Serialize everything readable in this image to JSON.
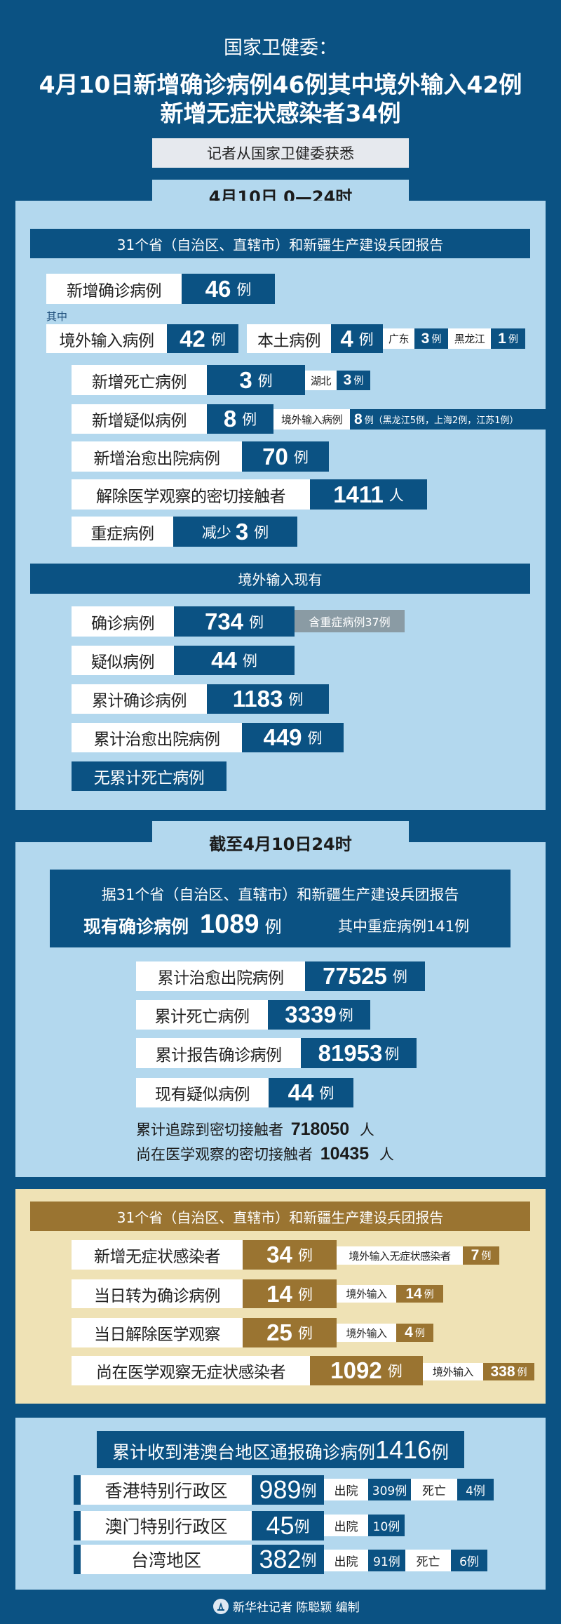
{
  "colors": {
    "background": "#0b5283",
    "panel": "#b3d8ee",
    "box_dark": "#0b5283",
    "asymptomatic_panel": "#efe2b5",
    "asymptomatic_box": "#9a7431",
    "note_gray": "#8a9ba4"
  },
  "header": {
    "agency": "国家卫健委：",
    "headline_line1": "4月10日新增确诊病例46例其中境外输入42例",
    "headline_line2": "新增无症状感染者34例",
    "source": "记者从国家卫健委获悉"
  },
  "daily": {
    "tab": "4月10日  0—24时",
    "report_header": "31个省（自治区、直辖市）和新疆生产建设兵团报告",
    "new_confirmed": {
      "label": "新增确诊病例",
      "value": "46",
      "unit": "例"
    },
    "of_which": "其中",
    "imported": {
      "label": "境外输入病例",
      "value": "42",
      "unit": "例"
    },
    "local": {
      "label": "本土病例",
      "value": "4",
      "unit": "例",
      "breakdown": [
        {
          "place": "广东",
          "value": "3",
          "unit": "例"
        },
        {
          "place": "黑龙江",
          "value": "1",
          "unit": "例"
        }
      ]
    },
    "deaths": {
      "label": "新增死亡病例",
      "value": "3",
      "unit": "例",
      "place": "湖北",
      "place_value": "3",
      "place_unit": "例"
    },
    "suspected": {
      "label": "新增疑似病例",
      "value": "8",
      "unit": "例",
      "detail_label": "境外输入病例",
      "detail_value": "8",
      "detail_text": "例（黑龙江5例，上海2例，江苏1例）"
    },
    "recovered": {
      "label": "新增治愈出院病例",
      "value": "70",
      "unit": "例"
    },
    "released_contacts": {
      "label": "解除医学观察的密切接触者",
      "value": "1411",
      "unit": "人"
    },
    "severe": {
      "label": "重症病例",
      "prefix": "减少",
      "value": "3",
      "unit": "例"
    },
    "imported_header": "境外输入现有",
    "imported_confirmed": {
      "label": "确诊病例",
      "value": "734",
      "unit": "例",
      "note": "含重症病例37例"
    },
    "imported_suspected": {
      "label": "疑似病例",
      "value": "44",
      "unit": "例"
    },
    "imported_cumulative": {
      "label": "累计确诊病例",
      "value": "1183",
      "unit": "例"
    },
    "imported_recovered": {
      "label": "累计治愈出院病例",
      "value": "449",
      "unit": "例"
    },
    "imported_deaths": "无累计死亡病例"
  },
  "cumulative": {
    "tab": "截至4月10日24时",
    "report_header": "据31个省（自治区、直辖市）和新疆生产建设兵团报告",
    "current_confirmed": {
      "label": "现有确诊病例",
      "value": "1089",
      "unit": "例",
      "note": "其中重症病例141例"
    },
    "recovered": {
      "label": "累计治愈出院病例",
      "value": "77525",
      "unit": "例"
    },
    "deaths": {
      "label": "累计死亡病例",
      "value": "3339",
      "unit": "例"
    },
    "confirmed": {
      "label": "累计报告确诊病例",
      "value": "81953",
      "unit": "例"
    },
    "suspected": {
      "label": "现有疑似病例",
      "value": "44",
      "unit": "例"
    },
    "traced_contacts": {
      "label": "累计追踪到密切接触者",
      "value": "718050",
      "unit": "人"
    },
    "observed_contacts": {
      "label": "尚在医学观察的密切接触者",
      "value": "10435",
      "unit": "人"
    }
  },
  "asymptomatic": {
    "report_header": "31个省（自治区、直辖市）和新疆生产建设兵团报告",
    "rows": [
      {
        "label": "新增无症状感染者",
        "value": "34",
        "unit": "例",
        "sub_label": "境外输入无症状感染者",
        "sub_value": "7",
        "sub_unit": "例"
      },
      {
        "label": "当日转为确诊病例",
        "value": "14",
        "unit": "例",
        "sub_label": "境外输入",
        "sub_value": "14",
        "sub_unit": "例"
      },
      {
        "label": "当日解除医学观察",
        "value": "25",
        "unit": "例",
        "sub_label": "境外输入",
        "sub_value": "4",
        "sub_unit": "例"
      },
      {
        "label": "尚在医学观察无症状感染者",
        "value": "1092",
        "unit": "例",
        "sub_label": "境外输入",
        "sub_value": "338",
        "sub_unit": "例"
      }
    ]
  },
  "hmt": {
    "header": "累计收到港澳台地区通报确诊病例",
    "header_value": "1416",
    "header_unit": "例",
    "rows": [
      {
        "region": "香港特别行政区",
        "value": "989",
        "unit": "例",
        "discharged_label": "出院",
        "discharged": "309例",
        "death_label": "死亡",
        "deaths": "4例"
      },
      {
        "region": "澳门特别行政区",
        "value": "45",
        "unit": "例",
        "discharged_label": "出院",
        "discharged": "10例"
      },
      {
        "region": "台湾地区",
        "value": "382",
        "unit": "例",
        "discharged_label": "出院",
        "discharged": "91例",
        "death_label": "死亡",
        "deaths": "6例"
      }
    ]
  },
  "footer": {
    "credit": "新华社记者 陈聪颖 编制",
    "logo_icon": "xinhua-logo-icon"
  }
}
